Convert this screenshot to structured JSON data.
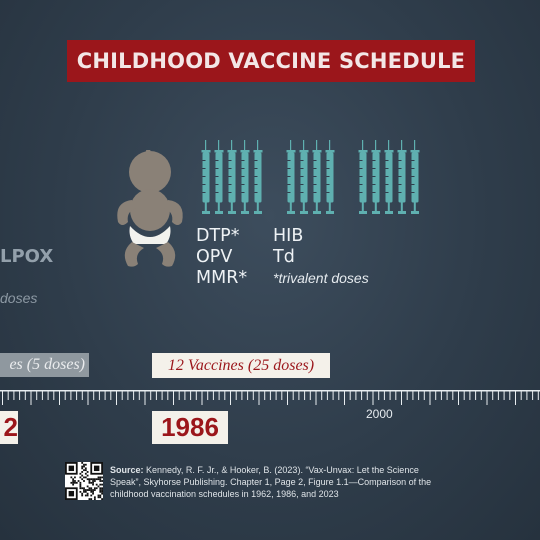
{
  "title": "CHILDHOOD VACCINE SCHEDULE",
  "vaccines": {
    "col1": [
      "DTP*",
      "OPV",
      "MMR*"
    ],
    "col2": [
      "HIB",
      "Td"
    ],
    "footnote": "*trivalent doses"
  },
  "left_partial": {
    "disease": "LPOX",
    "doses": "doses",
    "label": "es (5 doses)",
    "year": "2"
  },
  "mid_label": "12 Vaccines (25 doses)",
  "timeline": {
    "year_marker": "2000",
    "highlight_year": "1986"
  },
  "syringe_groups": [
    5,
    4,
    5
  ],
  "source": {
    "label": "Source:",
    "text": "Kennedy, R. F. Jr., & Hooker, B. (2023). “Vax-Unvax: Let the Science Speak”, Skyhorse Publishing. Chapter 1, Page 2, Figure 1.1—Comparison of the childhood vaccination schedules in 1962, 1986, and 2023"
  },
  "colors": {
    "title_bg": "#9b161b",
    "syringe": "#5fb0b0",
    "baby_skin": "#8a8177",
    "background": "#2f3d4b"
  }
}
